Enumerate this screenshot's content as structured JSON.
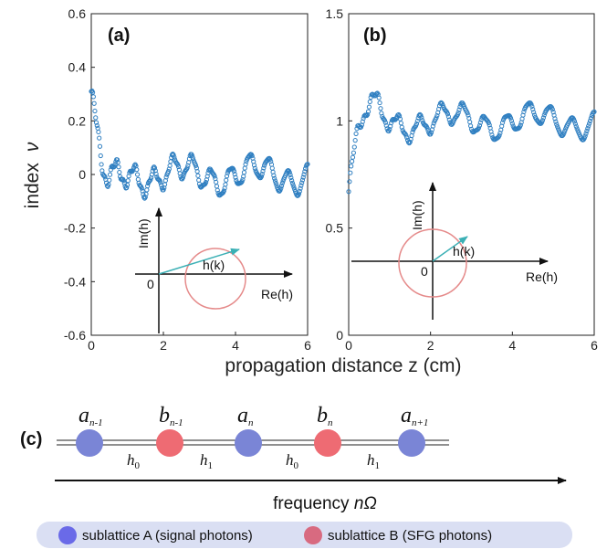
{
  "colors": {
    "marker": "#2f7fc1",
    "circle": "#e58a8a",
    "arrow": "#3bb0b5",
    "site_a": "#7a85d6",
    "site_b": "#ee6b73",
    "legend_bg": "#dadff3",
    "legend_a": "#6a6ae8",
    "legend_b": "#d86a80"
  },
  "shared": {
    "xlabel": "propagation distance z (cm)",
    "ylabel_prefix": "index",
    "ylabel_symbol": "ν"
  },
  "chart_data": [
    {
      "type": "scatter",
      "panel_label": "(a)",
      "xlim": [
        0,
        6
      ],
      "ylim": [
        -0.6,
        0.6
      ],
      "x_ticks": [
        "0",
        "2",
        "4",
        "6"
      ],
      "y_ticks": [
        "-0.6",
        "-0.4",
        "-0.2",
        "0",
        "0.2",
        "0.4",
        "0.6"
      ],
      "model": {
        "mean": 0.0,
        "env_amp": 0.31,
        "env_decay": 3.6,
        "slow_amp": 0.035,
        "ripple_amp": 0.045,
        "ripple_freq": 11.8
      },
      "inset": {
        "origin": "0",
        "im_label": "Im(h)",
        "re_label": "Re(h)",
        "vec_label": "h(k)"
      }
    },
    {
      "type": "scatter",
      "panel_label": "(b)",
      "xlim": [
        0,
        6
      ],
      "ylim": [
        0,
        1.5
      ],
      "x_ticks": [
        "0",
        "2",
        "4",
        "6"
      ],
      "y_ticks": [
        "0",
        "0.5",
        "1",
        "1.5"
      ],
      "model": {
        "mean": 1.0,
        "env_amp": -0.33,
        "env_decay": 3.0,
        "slow_amp": 0.04,
        "ripple_amp": 0.05,
        "ripple_freq": 11.8
      },
      "inset": {
        "origin": "0",
        "im_label": "Im(h)",
        "re_label": "Re(h)",
        "vec_label": "h(k)"
      }
    }
  ],
  "chain": {
    "panel_label": "(c)",
    "sites": [
      {
        "main": "a",
        "sub": "n-1",
        "type": "A"
      },
      {
        "main": "b",
        "sub": "n-1",
        "type": "B"
      },
      {
        "main": "a",
        "sub": "n",
        "type": "A"
      },
      {
        "main": "b",
        "sub": "n",
        "type": "B"
      },
      {
        "main": "a",
        "sub": "n+1",
        "type": "A"
      }
    ],
    "couplings": [
      {
        "main": "h",
        "sub": "0"
      },
      {
        "main": "h",
        "sub": "1"
      },
      {
        "main": "h",
        "sub": "0"
      },
      {
        "main": "h",
        "sub": "1"
      }
    ],
    "freq_prefix": "frequency ",
    "freq_symbol": "nΩ"
  },
  "legend": {
    "a_label": "sublattice A (signal photons)",
    "b_label": "sublattice B (SFG photons)"
  }
}
